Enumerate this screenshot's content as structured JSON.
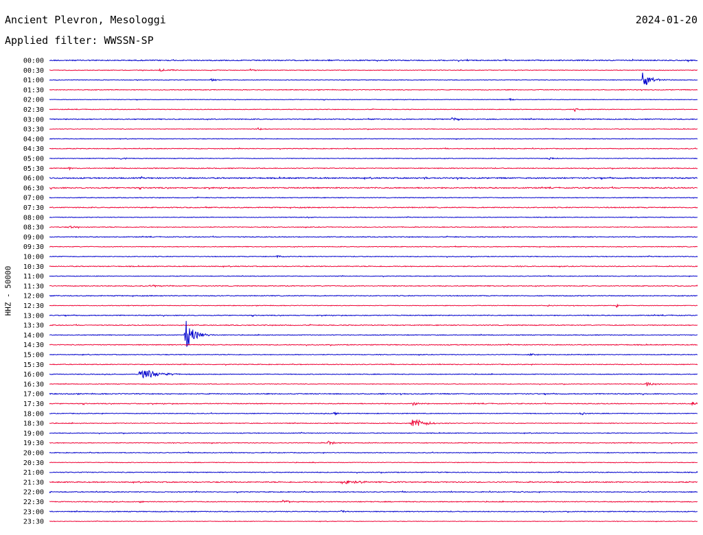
{
  "header": {
    "station": "Ancient Plevron, Mesologgi",
    "date": "2024-01-20",
    "filter_label": "Applied filter: WWSSN-SP"
  },
  "chart_data": {
    "type": "line",
    "title": "Ancient Plevron, Mesologgi",
    "ylabel": "HHZ - 50000",
    "colors": {
      "even_rows": "#0000cc",
      "odd_rows": "#ee0033"
    },
    "rows": [
      {
        "time": "00:00",
        "noise": 1.0,
        "events": []
      },
      {
        "time": "00:30",
        "noise": 0.6,
        "events": [
          {
            "t": 0.17,
            "amp": 2,
            "dur": 0.03
          },
          {
            "t": 0.31,
            "amp": 2,
            "dur": 0.012
          }
        ]
      },
      {
        "time": "01:00",
        "noise": 0.6,
        "events": [
          {
            "t": 0.25,
            "amp": 2,
            "dur": 0.012
          },
          {
            "t": 0.915,
            "amp": 12,
            "dur": 0.02
          }
        ]
      },
      {
        "time": "01:30",
        "noise": 0.7,
        "events": []
      },
      {
        "time": "02:00",
        "noise": 0.5,
        "events": [
          {
            "t": 0.71,
            "amp": 2,
            "dur": 0.01
          }
        ]
      },
      {
        "time": "02:30",
        "noise": 0.6,
        "events": [
          {
            "t": 0.81,
            "amp": 3,
            "dur": 0.01
          },
          {
            "t": 0.83,
            "amp": 1.5,
            "dur": 0.004
          }
        ]
      },
      {
        "time": "03:00",
        "noise": 0.9,
        "events": [
          {
            "t": 0.62,
            "amp": 2,
            "dur": 0.02
          }
        ]
      },
      {
        "time": "03:30",
        "noise": 0.6,
        "events": [
          {
            "t": 0.32,
            "amp": 2,
            "dur": 0.015
          }
        ]
      },
      {
        "time": "04:00",
        "noise": 0.6,
        "events": []
      },
      {
        "time": "04:30",
        "noise": 0.7,
        "events": []
      },
      {
        "time": "05:00",
        "noise": 0.6,
        "events": [
          {
            "t": 0.11,
            "amp": 1.5,
            "dur": 0.015
          },
          {
            "t": 0.77,
            "amp": 2,
            "dur": 0.02
          }
        ]
      },
      {
        "time": "05:30",
        "noise": 0.8,
        "events": [
          {
            "t": 0.03,
            "amp": 2,
            "dur": 0.006
          }
        ]
      },
      {
        "time": "06:00",
        "noise": 1.2,
        "events": [
          {
            "t": 0.58,
            "amp": 2,
            "dur": 0.01
          }
        ]
      },
      {
        "time": "06:30",
        "noise": 1.1,
        "events": []
      },
      {
        "time": "07:00",
        "noise": 0.7,
        "events": []
      },
      {
        "time": "07:30",
        "noise": 0.9,
        "events": []
      },
      {
        "time": "08:00",
        "noise": 0.6,
        "events": [
          {
            "t": 0.4,
            "amp": 1.5,
            "dur": 0.005
          }
        ]
      },
      {
        "time": "08:30",
        "noise": 0.7,
        "events": [
          {
            "t": 0.03,
            "amp": 2,
            "dur": 0.015
          },
          {
            "t": 0.7,
            "amp": 1.5,
            "dur": 0.015
          }
        ]
      },
      {
        "time": "09:00",
        "noise": 0.8,
        "events": []
      },
      {
        "time": "09:30",
        "noise": 0.7,
        "events": []
      },
      {
        "time": "10:00",
        "noise": 0.7,
        "events": [
          {
            "t": 0.35,
            "amp": 2.5,
            "dur": 0.015
          }
        ]
      },
      {
        "time": "10:30",
        "noise": 0.8,
        "events": []
      },
      {
        "time": "11:00",
        "noise": 0.6,
        "events": []
      },
      {
        "time": "11:30",
        "noise": 0.8,
        "events": [
          {
            "t": 0.16,
            "amp": 1.5,
            "dur": 0.03
          }
        ]
      },
      {
        "time": "12:00",
        "noise": 0.8,
        "events": []
      },
      {
        "time": "12:30",
        "noise": 0.6,
        "events": [
          {
            "t": 0.77,
            "amp": 2,
            "dur": 0.006
          },
          {
            "t": 0.875,
            "amp": 4,
            "dur": 0.004
          }
        ]
      },
      {
        "time": "13:00",
        "noise": 0.8,
        "events": []
      },
      {
        "time": "13:30",
        "noise": 0.8,
        "events": []
      },
      {
        "time": "14:00",
        "noise": 0.7,
        "events": [
          {
            "t": 0.21,
            "amp": 24,
            "dur": 0.02
          }
        ]
      },
      {
        "time": "14:30",
        "noise": 0.8,
        "events": []
      },
      {
        "time": "15:00",
        "noise": 0.7,
        "events": [
          {
            "t": 0.74,
            "amp": 1.5,
            "dur": 0.02
          }
        ]
      },
      {
        "time": "15:30",
        "noise": 0.7,
        "events": []
      },
      {
        "time": "16:00",
        "noise": 0.7,
        "events": [
          {
            "t": 0.14,
            "amp": 10,
            "dur": 0.035
          }
        ]
      },
      {
        "time": "16:30",
        "noise": 0.6,
        "events": [
          {
            "t": 0.92,
            "amp": 3,
            "dur": 0.02
          }
        ]
      },
      {
        "time": "17:00",
        "noise": 0.9,
        "events": []
      },
      {
        "time": "17:30",
        "noise": 0.8,
        "events": [
          {
            "t": 0.56,
            "amp": 4,
            "dur": 0.012
          },
          {
            "t": 0.99,
            "amp": 3,
            "dur": 0.01
          }
        ]
      },
      {
        "time": "18:00",
        "noise": 0.7,
        "events": [
          {
            "t": 0.44,
            "amp": 3,
            "dur": 0.01
          },
          {
            "t": 0.82,
            "amp": 2.5,
            "dur": 0.012
          }
        ]
      },
      {
        "time": "18:30",
        "noise": 0.7,
        "events": [
          {
            "t": 0.56,
            "amp": 8,
            "dur": 0.025
          }
        ]
      },
      {
        "time": "19:00",
        "noise": 0.7,
        "events": []
      },
      {
        "time": "19:30",
        "noise": 0.7,
        "events": [
          {
            "t": 0.43,
            "amp": 3,
            "dur": 0.015
          }
        ]
      },
      {
        "time": "20:00",
        "noise": 0.7,
        "events": [
          {
            "t": 0.22,
            "amp": 1.5,
            "dur": 0.006
          }
        ]
      },
      {
        "time": "20:30",
        "noise": 0.6,
        "events": [
          {
            "t": 0.41,
            "amp": 1.5,
            "dur": 0.004
          }
        ]
      },
      {
        "time": "21:00",
        "noise": 0.8,
        "events": []
      },
      {
        "time": "21:30",
        "noise": 1.0,
        "events": [
          {
            "t": 0.45,
            "amp": 2.5,
            "dur": 0.06
          }
        ]
      },
      {
        "time": "22:00",
        "noise": 0.8,
        "events": [
          {
            "t": 0.0,
            "amp": 2,
            "dur": 0.008
          },
          {
            "t": 0.73,
            "amp": 1.5,
            "dur": 0.004
          }
        ]
      },
      {
        "time": "22:30",
        "noise": 0.8,
        "events": [
          {
            "t": 0.14,
            "amp": 1.5,
            "dur": 0.015
          },
          {
            "t": 0.36,
            "amp": 4,
            "dur": 0.015
          }
        ]
      },
      {
        "time": "23:00",
        "noise": 0.8,
        "events": [
          {
            "t": 0.45,
            "amp": 2.5,
            "dur": 0.008
          }
        ]
      },
      {
        "time": "23:30",
        "noise": 0.5,
        "events": []
      }
    ]
  }
}
